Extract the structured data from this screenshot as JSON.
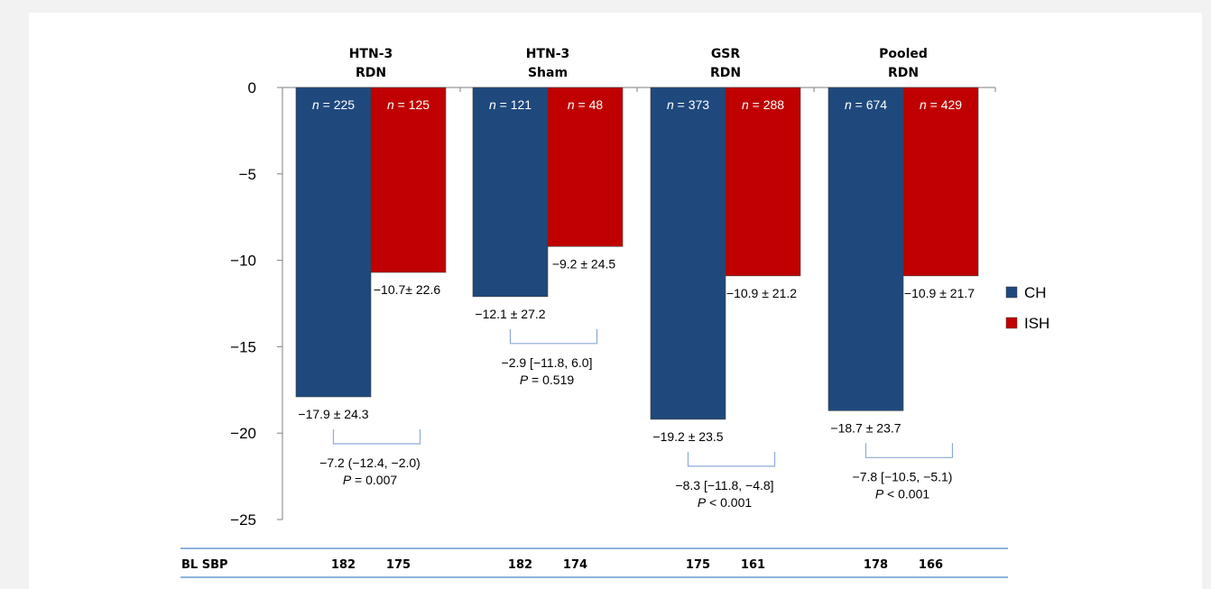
{
  "chart_data": {
    "type": "bar",
    "categories": [
      "HTN-3 RDN",
      "HTN-3 Sham",
      "GSR RDN",
      "Pooled RDN"
    ],
    "group_titles": [
      [
        "HTN-3",
        "RDN"
      ],
      [
        "HTN-3",
        "Sham"
      ],
      [
        "GSR",
        "RDN"
      ],
      [
        "Pooled",
        "RDN"
      ]
    ],
    "ylim": [
      -25,
      0
    ],
    "yticks": [
      0,
      -5,
      -10,
      -15,
      -20,
      -25
    ],
    "ytick_labels": [
      "0",
      "−5",
      "−10",
      "−15",
      "−20",
      "−25"
    ],
    "series": [
      {
        "name": "CH",
        "color": "#1f497d",
        "values": [
          -17.9,
          -12.1,
          -19.2,
          -18.7
        ],
        "n_labels": [
          "225",
          "121",
          "373",
          "674"
        ],
        "value_labels": [
          "−17.9 ± 24.3",
          "−12.1 ± 27.2",
          "−19.2 ± 23.5",
          "−18.7 ± 23.7"
        ]
      },
      {
        "name": "ISH",
        "color": "#c00000",
        "values": [
          -10.7,
          -9.2,
          -10.9,
          -10.9
        ],
        "n_labels": [
          "125",
          "48",
          "288",
          "429"
        ],
        "value_labels": [
          "−10.7± 22.6",
          "−9.2 ± 24.5",
          "−10.9 ± 21.2",
          "−10.9 ± 21.7"
        ]
      }
    ],
    "n_prefix": "n",
    "n_eq": " = ",
    "differences": [
      {
        "line1": "−7.2 (−12.4, −2.0)",
        "p_op": " = 0.007"
      },
      {
        "line1": "−2.9 [−11.8, 6.0]",
        "p_op": " = 0.519"
      },
      {
        "line1": "−8.3 [−11.8, −4.8]",
        "p_op": " < 0.001"
      },
      {
        "line1": "−7.8 [−10.5, −5.1)",
        "p_op": " < 0.001"
      }
    ],
    "p_symbol": "P",
    "baseline": {
      "label": "BL SBP",
      "values": [
        [
          "182",
          "175"
        ],
        [
          "182",
          "174"
        ],
        [
          "175",
          "161"
        ],
        [
          "178",
          "166"
        ]
      ]
    },
    "legend": {
      "position": "right",
      "items": [
        "CH",
        "ISH"
      ]
    },
    "grid": false
  }
}
